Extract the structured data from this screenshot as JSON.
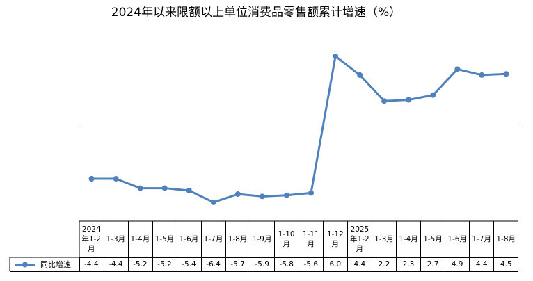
{
  "chart_data": {
    "type": "line",
    "title": "2024年以来限额以上单位消费品零售额累计增速（%）",
    "categories": [
      "2024年1-2月",
      "1-3月",
      "1-4月",
      "1-5月",
      "1-6月",
      "1-7月",
      "1-8月",
      "1-9月",
      "1-10月",
      "1-11月",
      "1-12月",
      "2025年1-2月",
      "1-3月",
      "1-4月",
      "1-5月",
      "1-6月",
      "1-7月",
      "1-8月"
    ],
    "series": [
      {
        "name": "同比增速",
        "color": "#4f81bd",
        "values": [
          -4.4,
          -4.4,
          -5.2,
          -5.2,
          -5.4,
          -6.4,
          -5.7,
          -5.9,
          -5.8,
          -5.6,
          6.0,
          4.4,
          2.2,
          2.3,
          2.7,
          4.9,
          4.4,
          4.5
        ],
        "value_labels": [
          "-4.4",
          "-4.4",
          "-5.2",
          "-5.2",
          "-5.4",
          "-6.4",
          "-5.7",
          "-5.9",
          "-5.8",
          "-5.6",
          "6.0",
          "4.4",
          "2.2",
          "2.3",
          "2.7",
          "4.9",
          "4.4",
          "4.5"
        ]
      }
    ],
    "ylim": [
      -8,
      9
    ],
    "data_table": true
  }
}
